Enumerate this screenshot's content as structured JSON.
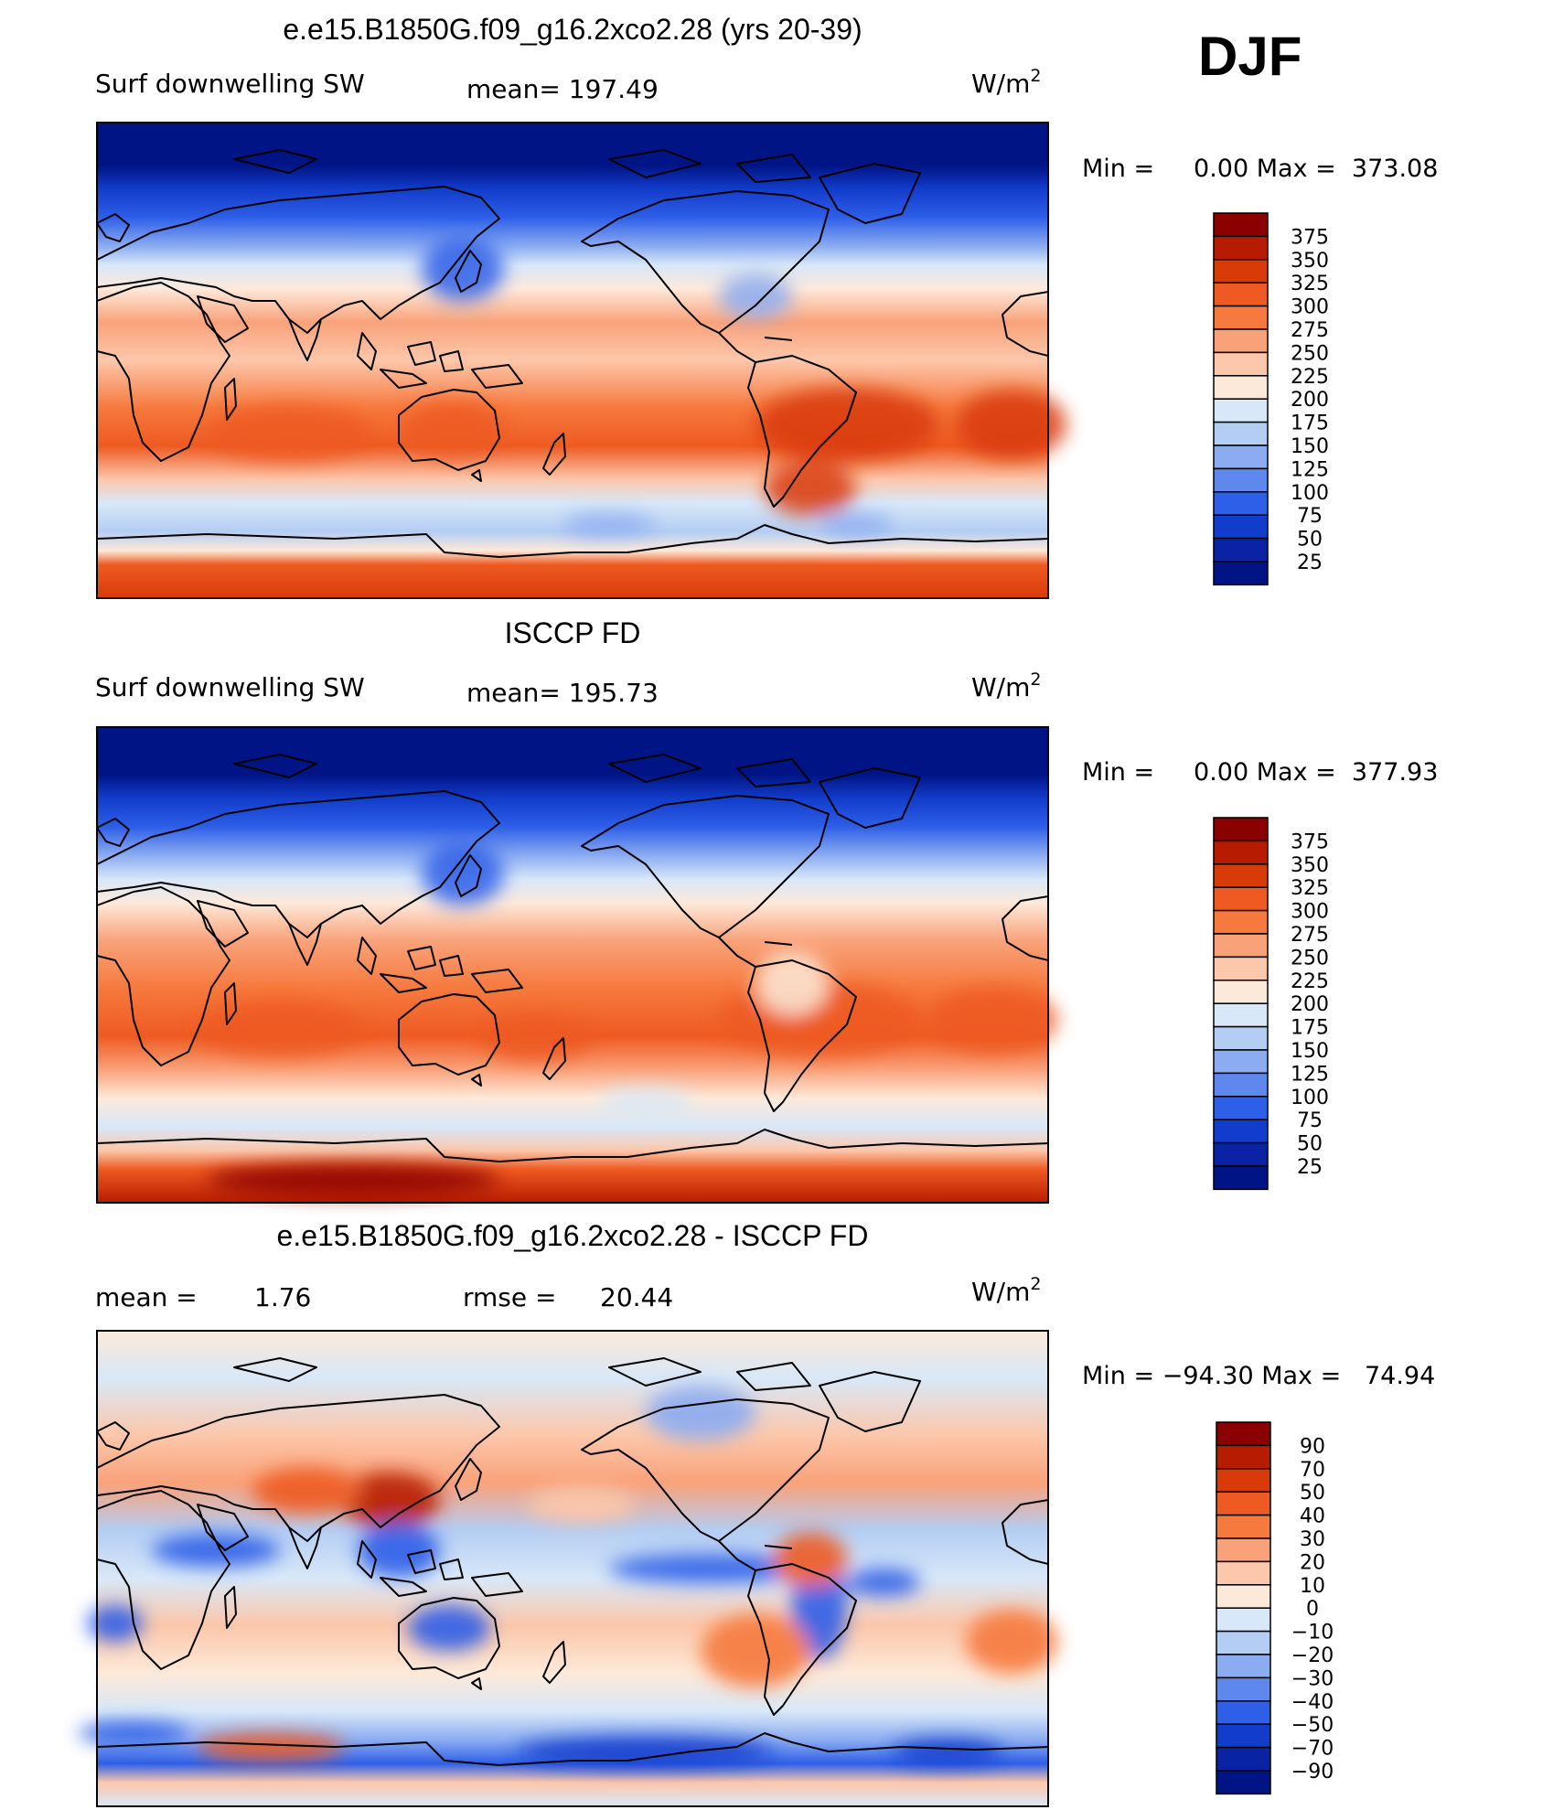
{
  "season": "DJF",
  "units_superscript_note": "W/m²",
  "panels": [
    {
      "id": "model",
      "title": "e.e15.B1850G.f09_g16.2xco2.28 (yrs 20-39)",
      "left_label": "Surf downwelling SW",
      "center_label": "mean=",
      "center_value": "197.49",
      "right_label": "W/m",
      "right_label_sup": "2",
      "minmax_text": "Min =     0.00 Max =  373.08",
      "colorbar_levels": [
        "375",
        "350",
        "325",
        "300",
        "275",
        "250",
        "225",
        "200",
        "175",
        "150",
        "125",
        "100",
        "75",
        "50",
        "25"
      ],
      "colorbar_colors": [
        "#8b0000",
        "#b81c00",
        "#d93b08",
        "#ee5a22",
        "#f6793e",
        "#f9a27a",
        "#fcc7aa",
        "#fde9d9",
        "#d8e8f8",
        "#b4cdf3",
        "#8cacf1",
        "#5f88ee",
        "#2e5fe8",
        "#123ccb",
        "#0a23a4",
        "#001486"
      ]
    },
    {
      "id": "obs",
      "title": "ISCCP FD",
      "left_label": "Surf downwelling SW",
      "center_label": "mean=",
      "center_value": "195.73",
      "right_label": "W/m",
      "right_label_sup": "2",
      "minmax_text": "Min =     0.00 Max =  377.93",
      "colorbar_levels": [
        "375",
        "350",
        "325",
        "300",
        "275",
        "250",
        "225",
        "200",
        "175",
        "150",
        "125",
        "100",
        "75",
        "50",
        "25"
      ],
      "colorbar_colors": [
        "#8b0000",
        "#b81c00",
        "#d93b08",
        "#ee5a22",
        "#f6793e",
        "#f9a27a",
        "#fcc7aa",
        "#fde9d9",
        "#d8e8f8",
        "#b4cdf3",
        "#8cacf1",
        "#5f88ee",
        "#2e5fe8",
        "#123ccb",
        "#0a23a4",
        "#001486"
      ]
    },
    {
      "id": "diff",
      "title": "e.e15.B1850G.f09_g16.2xco2.28 - ISCCP FD",
      "left_label": "mean =",
      "left_value": "1.76",
      "center_label": "rmse =",
      "center_value": "20.44",
      "right_label": "W/m",
      "right_label_sup": "2",
      "minmax_text": "Min = −94.30 Max =   74.94",
      "colorbar_levels": [
        "90",
        "70",
        "50",
        "40",
        "30",
        "20",
        "10",
        "0",
        "−10",
        "−20",
        "−30",
        "−40",
        "−50",
        "−70",
        "−90"
      ],
      "colorbar_colors": [
        "#8b0000",
        "#b81c00",
        "#d93b08",
        "#ee5a22",
        "#f6793e",
        "#f9a27a",
        "#fcc7aa",
        "#fde9d9",
        "#d8e8f8",
        "#b4cdf3",
        "#8cacf1",
        "#5f88ee",
        "#2e5fe8",
        "#123ccb",
        "#0a23a4",
        "#001486"
      ]
    }
  ],
  "colors": {
    "deep_blue": "#001486",
    "mid_blue": "#2e5fe8",
    "light_blue": "#d8e8f8",
    "cream": "#fde9d9",
    "salmon": "#f9a27a",
    "orange": "#ee5a22",
    "dark_red": "#b81c00"
  }
}
